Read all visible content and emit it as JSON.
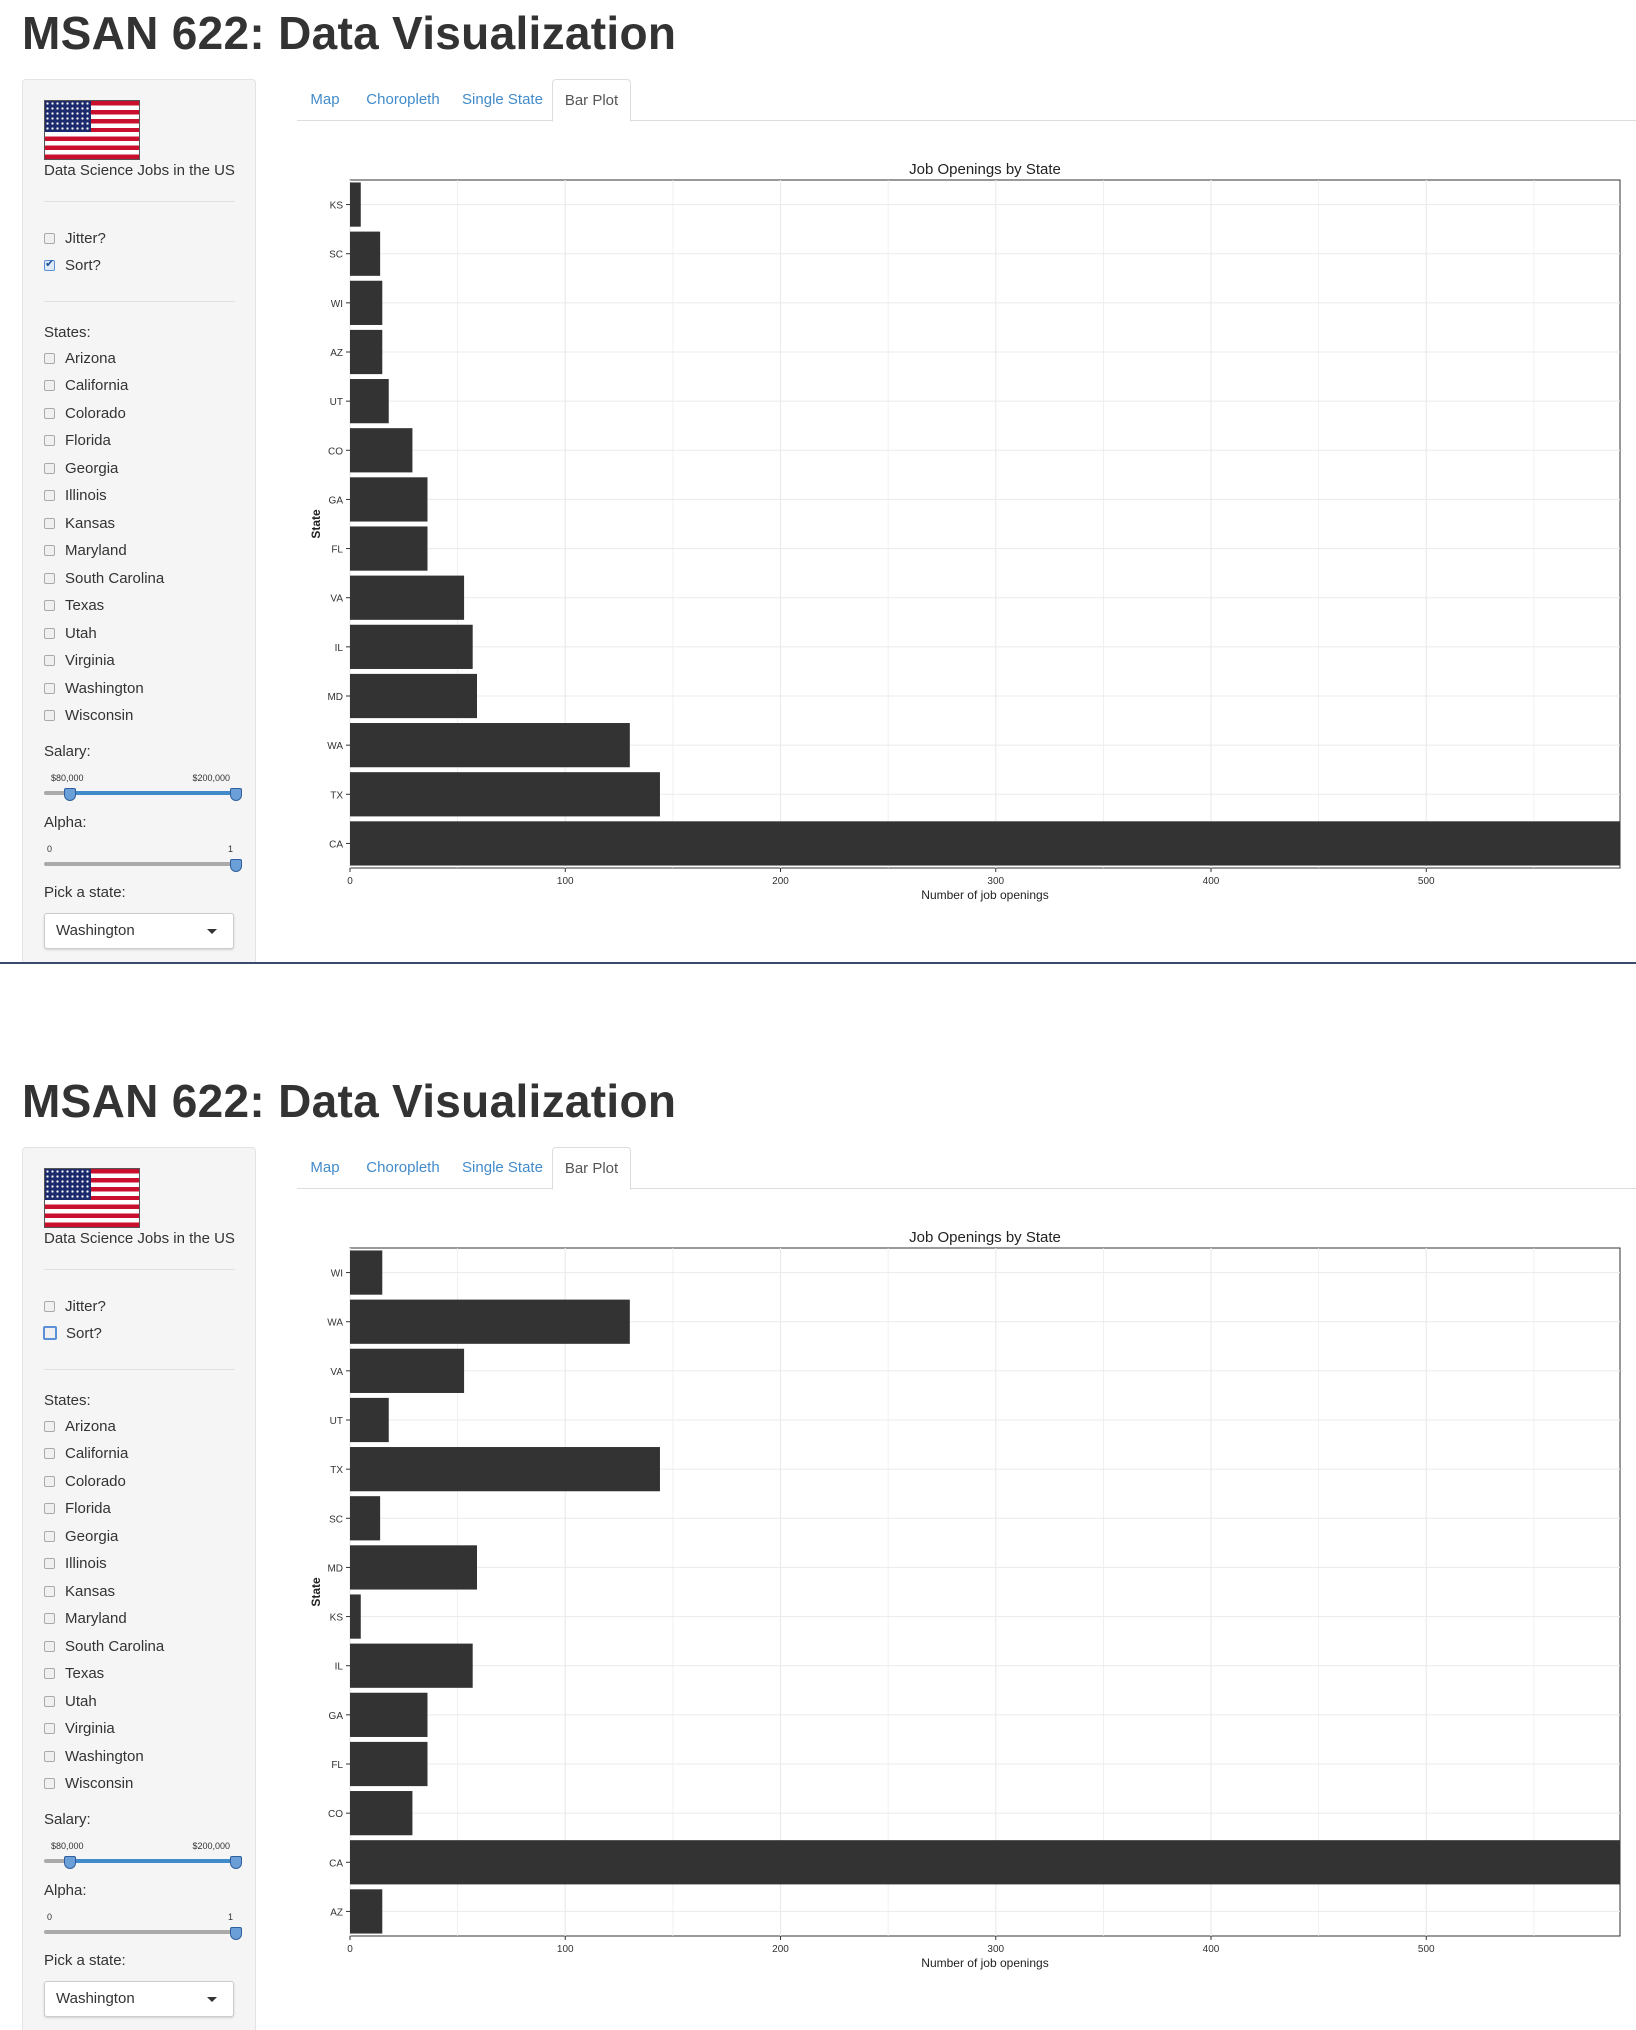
{
  "app": {
    "title": "MSAN 622: Data Visualization"
  },
  "sidebar": {
    "tagline": "Data Science Jobs in the US",
    "jitter_label": "Jitter?",
    "sort_label": "Sort?",
    "states_label": "States:",
    "states": [
      "Arizona",
      "California",
      "Colorado",
      "Florida",
      "Georgia",
      "Illinois",
      "Kansas",
      "Maryland",
      "South Carolina",
      "Texas",
      "Utah",
      "Virginia",
      "Washington",
      "Wisconsin"
    ],
    "salary_label": "Salary:",
    "salary_min_label": "$80,000",
    "salary_max_label": "$200,000",
    "salary_low_fraction": 0.13,
    "salary_high_fraction": 1.0,
    "alpha_label": "Alpha:",
    "alpha_min_label": "0",
    "alpha_max_label": "1",
    "alpha_value": 1,
    "pick_state_label": "Pick a state:",
    "pick_state_value": "Washington"
  },
  "tabs": [
    "Map",
    "Choropleth",
    "Single State",
    "Bar Plot"
  ],
  "active_tab": "Bar Plot",
  "colors": {
    "bar": "#333333",
    "link": "#428bca",
    "grid": "#ebebeb",
    "divider": "#3a4a6a"
  },
  "panels": [
    {
      "jitter_checked": false,
      "sort_checked": true,
      "chart_data": {
        "type": "bar",
        "orientation": "horizontal",
        "title": "Job Openings by State",
        "xlabel": "Number of job openings",
        "ylabel": "State",
        "xlim": [
          0,
          590
        ],
        "xticks": [
          0,
          100,
          200,
          300,
          400,
          500
        ],
        "grid": true,
        "categories": [
          "CA",
          "TX",
          "WA",
          "MD",
          "IL",
          "VA",
          "FL",
          "GA",
          "CO",
          "UT",
          "AZ",
          "WI",
          "SC",
          "KS"
        ],
        "values": [
          590,
          144,
          130,
          59,
          57,
          53,
          36,
          36,
          29,
          18,
          15,
          15,
          14,
          5
        ]
      }
    },
    {
      "jitter_checked": false,
      "sort_checked": false,
      "chart_data": {
        "type": "bar",
        "orientation": "horizontal",
        "title": "Job Openings by State",
        "xlabel": "Number of job openings",
        "ylabel": "State",
        "xlim": [
          0,
          590
        ],
        "xticks": [
          0,
          100,
          200,
          300,
          400,
          500
        ],
        "grid": true,
        "categories": [
          "AZ",
          "CA",
          "CO",
          "FL",
          "GA",
          "IL",
          "KS",
          "MD",
          "SC",
          "TX",
          "UT",
          "VA",
          "WA",
          "WI"
        ],
        "values": [
          15,
          590,
          29,
          36,
          36,
          57,
          5,
          59,
          14,
          144,
          18,
          53,
          130,
          15
        ]
      }
    }
  ]
}
